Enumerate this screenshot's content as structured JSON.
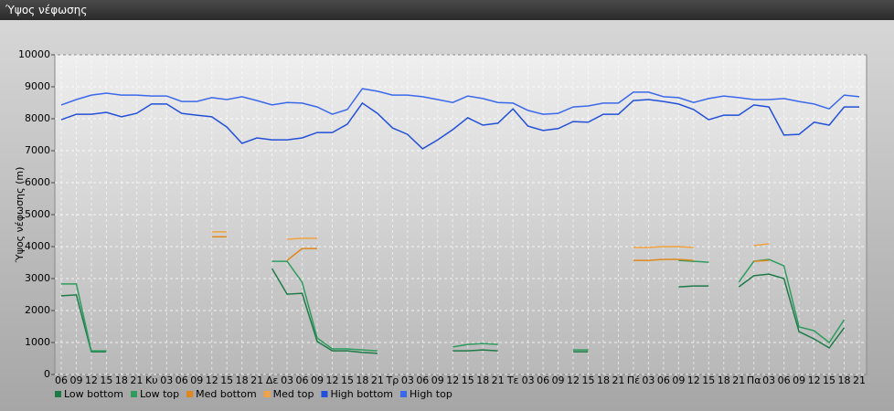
{
  "window_title": "Ύψος νέφωσης",
  "chart_data": {
    "type": "line",
    "y_label": "Ύψος νέφωσης (m)",
    "categories": [
      "06",
      "09",
      "12",
      "15",
      "18",
      "21",
      "Κυ",
      "03",
      "06",
      "09",
      "12",
      "15",
      "18",
      "21",
      "Δε",
      "03",
      "06",
      "09",
      "12",
      "15",
      "18",
      "21",
      "Τρ",
      "03",
      "06",
      "09",
      "12",
      "15",
      "18",
      "21",
      "Τε",
      "03",
      "06",
      "09",
      "12",
      "15",
      "18",
      "21",
      "Πέ",
      "03",
      "06",
      "09",
      "12",
      "15",
      "18",
      "21",
      "Πα",
      "03",
      "06",
      "09",
      "12",
      "15",
      "18",
      "21"
    ],
    "ylim": [
      0,
      10000
    ],
    "yticks": [
      0,
      1000,
      2000,
      3000,
      4000,
      5000,
      6000,
      7000,
      8000,
      9000,
      10000
    ],
    "grid": true,
    "legend": "bottom",
    "series": [
      {
        "name": "Low bottom",
        "color": "#1f7a48",
        "values": [
          2460,
          2490,
          710,
          710,
          null,
          null,
          null,
          null,
          null,
          null,
          null,
          null,
          null,
          null,
          3310,
          2510,
          2540,
          1030,
          740,
          740,
          690,
          660,
          null,
          null,
          null,
          null,
          740,
          740,
          770,
          740,
          null,
          null,
          null,
          null,
          710,
          710,
          null,
          null,
          null,
          null,
          null,
          2740,
          2770,
          2770,
          null,
          2740,
          3090,
          3140,
          3000,
          1340,
          1110,
          830,
          1460,
          null
        ]
      },
      {
        "name": "Low top",
        "color": "#2f9c5f",
        "values": [
          2830,
          2830,
          740,
          740,
          null,
          null,
          null,
          null,
          null,
          null,
          null,
          null,
          null,
          null,
          3540,
          3540,
          2890,
          1140,
          800,
          800,
          770,
          740,
          null,
          null,
          null,
          null,
          860,
          940,
          970,
          940,
          null,
          null,
          null,
          null,
          770,
          770,
          null,
          null,
          null,
          null,
          null,
          3570,
          3540,
          3510,
          null,
          2890,
          3540,
          3600,
          3400,
          1490,
          1370,
          1000,
          1710,
          null
        ]
      },
      {
        "name": "Med bottom",
        "color": "#e0881c",
        "values": [
          null,
          null,
          null,
          null,
          null,
          null,
          null,
          null,
          null,
          null,
          4310,
          4310,
          null,
          null,
          null,
          3570,
          3940,
          3940,
          null,
          null,
          null,
          null,
          null,
          null,
          null,
          null,
          null,
          null,
          null,
          null,
          null,
          null,
          null,
          null,
          null,
          null,
          null,
          null,
          3570,
          3570,
          3600,
          3600,
          3570,
          null,
          null,
          null,
          3540,
          3570,
          null,
          null,
          null,
          null,
          null,
          null
        ]
      },
      {
        "name": "Med top",
        "color": "#f2a241",
        "values": [
          null,
          null,
          null,
          null,
          null,
          null,
          null,
          null,
          null,
          null,
          4460,
          4460,
          null,
          null,
          null,
          4230,
          4260,
          4260,
          null,
          null,
          null,
          null,
          null,
          null,
          null,
          null,
          null,
          null,
          null,
          null,
          null,
          null,
          null,
          null,
          null,
          null,
          null,
          null,
          3970,
          3970,
          4000,
          4000,
          3970,
          null,
          null,
          null,
          4030,
          4090,
          null,
          null,
          null,
          null,
          null,
          null
        ]
      },
      {
        "name": "High bottom",
        "color": "#2250d8",
        "values": [
          7970,
          8140,
          8140,
          8200,
          8060,
          8170,
          8460,
          8460,
          8170,
          8110,
          8060,
          7740,
          7230,
          7400,
          7340,
          7340,
          7400,
          7570,
          7570,
          7830,
          8490,
          8170,
          7710,
          7510,
          7060,
          7340,
          7660,
          8030,
          7800,
          7860,
          8310,
          7770,
          7630,
          7690,
          7910,
          7890,
          8140,
          8140,
          8570,
          8600,
          8540,
          8460,
          8290,
          7970,
          8110,
          8110,
          8430,
          8370,
          7490,
          7510,
          7890,
          7800,
          8370,
          8370
        ]
      },
      {
        "name": "High top",
        "color": "#3a68ea",
        "values": [
          8430,
          8600,
          8740,
          8800,
          8740,
          8740,
          8710,
          8710,
          8540,
          8540,
          8660,
          8600,
          8690,
          8570,
          8430,
          8510,
          8490,
          8370,
          8140,
          8290,
          8940,
          8860,
          8740,
          8740,
          8690,
          8600,
          8510,
          8710,
          8630,
          8510,
          8490,
          8260,
          8140,
          8170,
          8370,
          8400,
          8490,
          8490,
          8830,
          8830,
          8690,
          8660,
          8510,
          8630,
          8710,
          8660,
          8600,
          8600,
          8630,
          8540,
          8460,
          8310,
          8740,
          8690
        ]
      }
    ]
  }
}
